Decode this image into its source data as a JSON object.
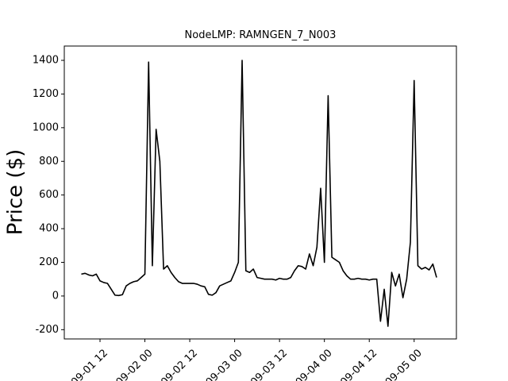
{
  "chart_data": {
    "type": "line",
    "title": "NodeLMP: RAMNGEN_7_N003",
    "ylabel": "Price ($)",
    "x": [
      7,
      8,
      9,
      10,
      11,
      12,
      13,
      14,
      15,
      16,
      17,
      18,
      19,
      20,
      21,
      22,
      23,
      24,
      25,
      26,
      27,
      28,
      29,
      30,
      31,
      32,
      33,
      34,
      35,
      36,
      37,
      38,
      39,
      40,
      41,
      42,
      43,
      44,
      45,
      46,
      47,
      48,
      49,
      50,
      51,
      52,
      53,
      54,
      55,
      56,
      57,
      58,
      59,
      60,
      61,
      62,
      63,
      64,
      65,
      66,
      67,
      68,
      69,
      70,
      71,
      72,
      73,
      74,
      75,
      76,
      77,
      78,
      79,
      80,
      81,
      82,
      83,
      84,
      85,
      86,
      87,
      88,
      89,
      90,
      91,
      92,
      93,
      94,
      95,
      96,
      97,
      98,
      99,
      100,
      101,
      102
    ],
    "series": [
      {
        "name": "Price",
        "color": "#000000",
        "values": [
          130,
          135,
          125,
          120,
          130,
          90,
          80,
          75,
          40,
          5,
          3,
          8,
          60,
          75,
          85,
          90,
          110,
          130,
          1390,
          180,
          990,
          800,
          160,
          180,
          140,
          110,
          85,
          75,
          75,
          75,
          75,
          70,
          60,
          55,
          10,
          5,
          20,
          60,
          70,
          80,
          90,
          140,
          200,
          1400,
          150,
          140,
          160,
          110,
          105,
          100,
          100,
          100,
          95,
          105,
          100,
          100,
          110,
          150,
          180,
          175,
          160,
          250,
          180,
          290,
          640,
          200,
          1190,
          230,
          215,
          200,
          150,
          120,
          100,
          100,
          105,
          100,
          100,
          95,
          100,
          100,
          -150,
          40,
          -180,
          140,
          60,
          130,
          -10,
          100,
          320,
          1280,
          180,
          160,
          170,
          155,
          190,
          110
        ]
      }
    ],
    "xlim": [
      2.45,
      107.3
    ],
    "ylim": [
      -255,
      1485
    ],
    "xticks": [
      {
        "value": 12,
        "label": "09-01 12"
      },
      {
        "value": 24,
        "label": "09-02 00"
      },
      {
        "value": 36,
        "label": "09-02 12"
      },
      {
        "value": 48,
        "label": "09-03 00"
      },
      {
        "value": 60,
        "label": "09-03 12"
      },
      {
        "value": 72,
        "label": "09-04 00"
      },
      {
        "value": 84,
        "label": "09-04 12"
      },
      {
        "value": 96,
        "label": "09-05 00"
      }
    ],
    "yticks": [
      -200,
      0,
      200,
      400,
      600,
      800,
      1000,
      1200,
      1400
    ]
  }
}
